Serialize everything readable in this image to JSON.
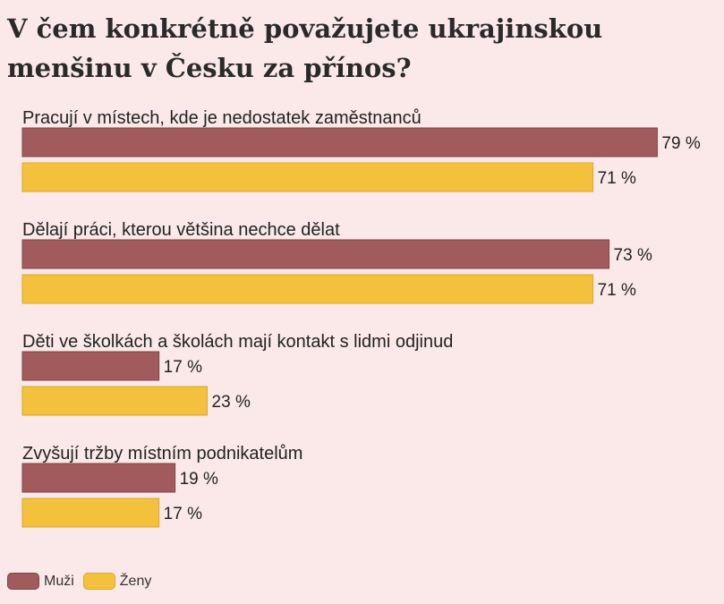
{
  "chart_data": {
    "type": "bar",
    "orientation": "horizontal",
    "title": "V čem konkrétně považujete ukrajinskou menšinu v Česku za přínos?",
    "categories": [
      "Pracují v místech, kde je nedostatek zaměstnanců",
      "Dělají práci, kterou většina nechce dělat",
      "Děti ve školkách a školách mají kontakt s lidmi odjinud",
      "Zvyšují tržby místním podnikatelům"
    ],
    "series": [
      {
        "name": "Muži",
        "color": "#a15b5d",
        "values": [
          79,
          73,
          17,
          19
        ]
      },
      {
        "name": "Ženy",
        "color": "#f4c13c",
        "values": [
          71,
          71,
          23,
          17
        ]
      }
    ],
    "value_suffix": " %",
    "xlim": [
      0,
      100
    ],
    "grid": false,
    "legend_position": "bottom-left"
  },
  "legend": {
    "items": [
      {
        "label": "Muži",
        "color": "#a15b5d"
      },
      {
        "label": "Ženy",
        "color": "#f4c13c"
      }
    ]
  }
}
